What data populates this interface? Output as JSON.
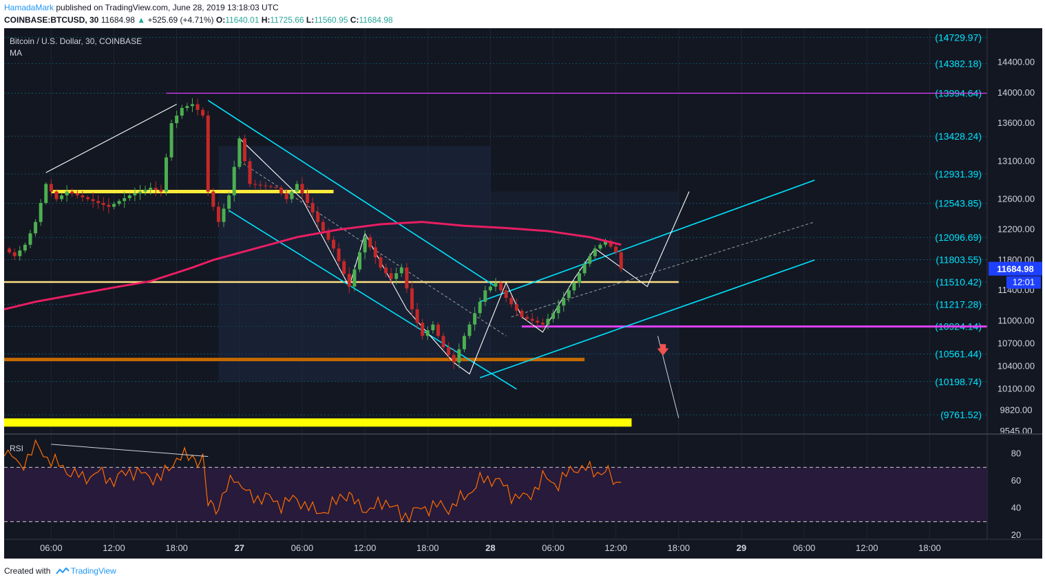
{
  "header": {
    "author": "HamadaMark",
    "published": "published on TradingView.com, June 28, 2019 13:18:03 UTC",
    "symbol": "COINBASE:BTCUSD, 30",
    "last": "11684.98",
    "change": "+525.69 (+4.71%)",
    "open_label": "O:",
    "open": "11640.01",
    "high_label": "H:",
    "high": "11725.66",
    "low_label": "L:",
    "low": "11560.95",
    "close_label": "C:",
    "close": "11684.98"
  },
  "legend": {
    "title": "Bitcoin / U.S. Dollar, 30, COINBASE",
    "ma": "MA",
    "rsi": "RSI"
  },
  "footer": {
    "created_with": "Created with",
    "brand": "TradingView"
  },
  "colors": {
    "background": "#131722",
    "up": "#4caf50",
    "down": "#c62828",
    "ma": "#e91e63",
    "channel": "#00e5ff",
    "level_label": "#00e5ff",
    "rsi": "#ff6d00",
    "rsi_band": "#2a1b3d",
    "yellow": "#ffeb3b",
    "orange": "#e65100",
    "magenta": "#e040fb",
    "price_tag": "#1e40ff"
  },
  "chart_data": [
    {
      "type": "candlestick",
      "title": "Bitcoin / U.S. Dollar, 30, COINBASE",
      "symbol": "COINBASE:BTCUSD",
      "interval": "30",
      "ylim": [
        9545,
        14850
      ],
      "y_ticks": [
        "14400.00",
        "14000.00",
        "13600.00",
        "13100.00",
        "12600.00",
        "12200.00",
        "11800.00",
        "11400.00",
        "11000.00",
        "10700.00",
        "10400.00",
        "10100.00",
        "9820.00",
        "9545.00"
      ],
      "x_ticks": [
        "06:00",
        "12:00",
        "18:00",
        "27",
        "06:00",
        "12:00",
        "18:00",
        "28",
        "06:00",
        "12:00",
        "18:00",
        "29",
        "06:00",
        "12:00",
        "18:00"
      ],
      "x_tick_hours": [
        6,
        12,
        18,
        24,
        30,
        36,
        42,
        48,
        54,
        60,
        66,
        72,
        78,
        84,
        90
      ],
      "x_range_hours": [
        1.5,
        95.5
      ],
      "last_price": "11684.98",
      "countdown": "12:01",
      "levels": [
        {
          "value": 14729.97,
          "label": "(14729.97)"
        },
        {
          "value": 14382.18,
          "label": "(14382.18)"
        },
        {
          "value": 13994.64,
          "label": "(13994.64)"
        },
        {
          "value": 13428.24,
          "label": "(13428.24)"
        },
        {
          "value": 12931.39,
          "label": "(12931.39)"
        },
        {
          "value": 12543.85,
          "label": "(12543.85)"
        },
        {
          "value": 12096.69,
          "label": "(12096.69)"
        },
        {
          "value": 11803.55,
          "label": "(11803.55)"
        },
        {
          "value": 11510.42,
          "label": "(11510.42)"
        },
        {
          "value": 11217.28,
          "label": "(11217.28)"
        },
        {
          "value": 10924.14,
          "label": "(10924.14)"
        },
        {
          "value": 10561.44,
          "label": "(10561.44)"
        },
        {
          "value": 10198.74,
          "label": "(10198.74)"
        },
        {
          "value": 9761.52,
          "label": "(9761.52)"
        }
      ],
      "horizontal_lines": [
        {
          "value": 13994.64,
          "from_h": 17.0,
          "to_h": 95.5,
          "color": "#e040fb",
          "width": 1.2
        },
        {
          "value": 12700,
          "from_h": 6.0,
          "to_h": 33.0,
          "color": "#ffeb3b",
          "width": 5
        },
        {
          "value": 11510,
          "from_h": 1.5,
          "to_h": 66.0,
          "color": "#ffe082",
          "width": 2.5
        },
        {
          "value": 10924,
          "from_h": 51.0,
          "to_h": 95.5,
          "color": "#e040fb",
          "width": 3
        },
        {
          "value": 10490,
          "from_h": 1.5,
          "to_h": 57.0,
          "color": "#c56a00",
          "width": 5
        },
        {
          "value": 9660,
          "from_h": 1.5,
          "to_h": 61.5,
          "color": "#ffff00",
          "width": 12
        }
      ],
      "price_path": [
        [
          1.5,
          11950
        ],
        [
          2.5,
          11850
        ],
        [
          3.5,
          12000
        ],
        [
          4.5,
          12300
        ],
        [
          5.5,
          12800
        ],
        [
          6.5,
          12600
        ],
        [
          7.5,
          12700
        ],
        [
          9.5,
          12600
        ],
        [
          11.5,
          12500
        ],
        [
          13.5,
          12650
        ],
        [
          15.5,
          12750
        ],
        [
          16.5,
          12700
        ],
        [
          17.5,
          13600
        ],
        [
          18.5,
          13800
        ],
        [
          19.5,
          13850
        ],
        [
          20.5,
          13700
        ],
        [
          21.0,
          12700
        ],
        [
          22.0,
          12300
        ],
        [
          23.0,
          12650
        ],
        [
          24.0,
          13400
        ],
        [
          25.0,
          12800
        ],
        [
          27.5,
          12750
        ],
        [
          28.5,
          12600
        ],
        [
          29.5,
          12800
        ],
        [
          31.5,
          12300
        ],
        [
          33.0,
          11950
        ],
        [
          34.5,
          11450
        ],
        [
          35.5,
          11900
        ],
        [
          36.0,
          12100
        ],
        [
          37.5,
          11700
        ],
        [
          38.5,
          11550
        ],
        [
          39.5,
          11700
        ],
        [
          40.5,
          11150
        ],
        [
          41.5,
          10800
        ],
        [
          42.5,
          10950
        ],
        [
          43.5,
          10650
        ],
        [
          44.5,
          10450
        ],
        [
          45.5,
          10800
        ],
        [
          46.5,
          11100
        ],
        [
          47.5,
          11400
        ],
        [
          48.5,
          11500
        ],
        [
          49.5,
          11300
        ],
        [
          51.0,
          11050
        ],
        [
          53.0,
          10950
        ],
        [
          54.0,
          11100
        ],
        [
          55.0,
          11300
        ],
        [
          56.0,
          11500
        ],
        [
          57.0,
          11750
        ],
        [
          58.0,
          11950
        ],
        [
          59.0,
          12050
        ],
        [
          60.0,
          11900
        ],
        [
          60.5,
          11684.98
        ]
      ],
      "ma_path": [
        [
          1.5,
          11150
        ],
        [
          4.5,
          11250
        ],
        [
          8.5,
          11350
        ],
        [
          12.5,
          11450
        ],
        [
          15.5,
          11520
        ],
        [
          19.5,
          11700
        ],
        [
          21.5,
          11800
        ],
        [
          25.5,
          11950
        ],
        [
          29.5,
          12100
        ],
        [
          33.5,
          12200
        ],
        [
          37.5,
          12270
        ],
        [
          41.5,
          12300
        ],
        [
          45.5,
          12250
        ],
        [
          49.5,
          12220
        ],
        [
          53.5,
          12180
        ],
        [
          57.5,
          12100
        ],
        [
          60.5,
          12000
        ]
      ]
    },
    {
      "type": "line",
      "title": "RSI",
      "ylim": [
        17,
        93
      ],
      "y_ticks": [
        80,
        60,
        40,
        20
      ],
      "bands": [
        30,
        70
      ],
      "x": [
        1.5,
        3.0,
        4.5,
        6.0,
        7.5,
        9.0,
        10.5,
        12.0,
        13.5,
        15.0,
        16.5,
        18.0,
        19.5,
        20.5,
        21.0,
        22.0,
        23.5,
        25.0,
        26.5,
        28.0,
        29.5,
        31.0,
        32.5,
        34.0,
        35.0,
        36.5,
        38.0,
        39.5,
        41.0,
        42.5,
        44.0,
        45.5,
        47.0,
        48.5,
        50.0,
        51.5,
        53.0,
        54.5,
        56.0,
        57.5,
        59.0,
        60.0,
        60.5
      ],
      "values": [
        85,
        70,
        86,
        75,
        68,
        62,
        66,
        60,
        68,
        64,
        62,
        77,
        78,
        74,
        43,
        42,
        64,
        48,
        48,
        43,
        47,
        38,
        38,
        52,
        44,
        38,
        46,
        34,
        38,
        42,
        40,
        48,
        60,
        62,
        50,
        47,
        62,
        58,
        70,
        68,
        66,
        59,
        59
      ]
    }
  ]
}
